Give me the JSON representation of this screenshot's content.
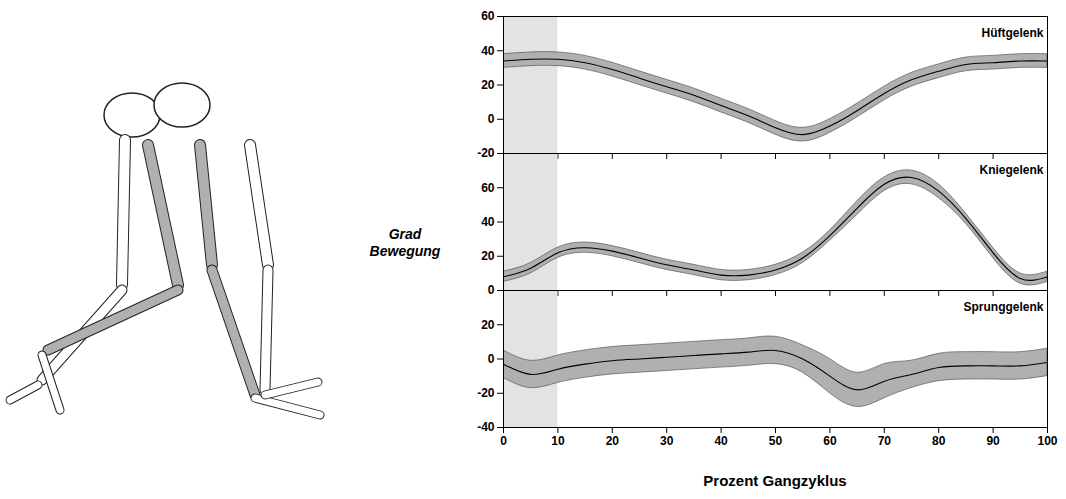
{
  "chart_data": [
    {
      "type": "line",
      "title": "Hüftgelenk",
      "color": "#000000",
      "x": [
        0,
        5,
        10,
        15,
        20,
        25,
        30,
        35,
        40,
        45,
        50,
        55,
        60,
        65,
        70,
        75,
        80,
        85,
        90,
        95,
        100
      ],
      "values": [
        34,
        35,
        35,
        33,
        29,
        24,
        19,
        14,
        8,
        2,
        -5,
        -9,
        -4,
        5,
        15,
        23,
        28,
        32,
        33,
        34,
        34
      ],
      "lower": [
        30,
        31,
        31,
        29,
        25,
        20,
        15,
        10,
        4,
        -2,
        -9,
        -13,
        -8,
        1,
        11,
        19,
        24,
        28,
        29,
        30,
        30
      ],
      "upper": [
        38,
        39,
        39,
        37,
        33,
        28,
        23,
        18,
        12,
        6,
        -1,
        -5,
        0,
        9,
        19,
        27,
        32,
        36,
        37,
        38,
        38
      ],
      "highlight": [
        0,
        10
      ],
      "xlim": [
        0,
        100
      ],
      "xticks": [
        0,
        10,
        20,
        30,
        40,
        50,
        60,
        70,
        80,
        90,
        100
      ],
      "ylim": [
        -20,
        60
      ],
      "yticks": [
        -20,
        0,
        20,
        40,
        60
      ],
      "tick_labels": "y"
    },
    {
      "type": "line",
      "title": "Kniegelenk",
      "color": "#000000",
      "ylabel": "Grad Bewegung",
      "x": [
        0,
        5,
        10,
        15,
        20,
        25,
        30,
        35,
        40,
        45,
        50,
        55,
        60,
        65,
        70,
        75,
        80,
        85,
        90,
        95,
        100
      ],
      "values": [
        8,
        13,
        22,
        25,
        23,
        19,
        15,
        12,
        9,
        9,
        12,
        19,
        32,
        48,
        62,
        66,
        58,
        42,
        22,
        7,
        8
      ],
      "lower": [
        5,
        10,
        19,
        22,
        20,
        16,
        12,
        9,
        6,
        6,
        9,
        16,
        29,
        44,
        58,
        62,
        54,
        39,
        19,
        4,
        5
      ],
      "upper": [
        11,
        16,
        25,
        28,
        26,
        22,
        18,
        15,
        12,
        12,
        15,
        22,
        35,
        52,
        66,
        70,
        62,
        45,
        25,
        10,
        11
      ],
      "highlight": [
        0,
        10
      ],
      "xlim": [
        0,
        100
      ],
      "xticks": [
        0,
        10,
        20,
        30,
        40,
        50,
        60,
        70,
        80,
        90,
        100
      ],
      "ylim": [
        0,
        80
      ],
      "yticks": [
        0,
        20,
        40,
        60
      ],
      "tick_labels": "y"
    },
    {
      "type": "line",
      "title": "Sprunggelenk",
      "color": "#000000",
      "xlabel": "Prozent Gangzyklus",
      "x": [
        0,
        5,
        10,
        15,
        20,
        25,
        30,
        35,
        40,
        45,
        50,
        55,
        60,
        65,
        70,
        75,
        80,
        85,
        90,
        95,
        100
      ],
      "values": [
        -3,
        -9,
        -6,
        -3,
        -1,
        0,
        1,
        2,
        3,
        4,
        5,
        0,
        -10,
        -18,
        -13,
        -9,
        -5,
        -4,
        -4,
        -4,
        -2
      ],
      "lower": [
        -11,
        -17,
        -14,
        -11,
        -9,
        -8,
        -7,
        -6,
        -5,
        -4,
        -3,
        -8,
        -20,
        -28,
        -23,
        -17,
        -13,
        -12,
        -12,
        -12,
        -10
      ],
      "upper": [
        5,
        -1,
        2,
        5,
        7,
        8,
        9,
        10,
        11,
        12,
        13,
        8,
        0,
        -8,
        -3,
        -1,
        3,
        4,
        4,
        4,
        6
      ],
      "highlight": [
        0,
        10
      ],
      "xlim": [
        0,
        100
      ],
      "xticks": [
        0,
        10,
        20,
        30,
        40,
        50,
        60,
        70,
        80,
        90,
        100
      ],
      "ylim": [
        -40,
        40
      ],
      "yticks": [
        -40,
        -20,
        0,
        20
      ]
    }
  ]
}
